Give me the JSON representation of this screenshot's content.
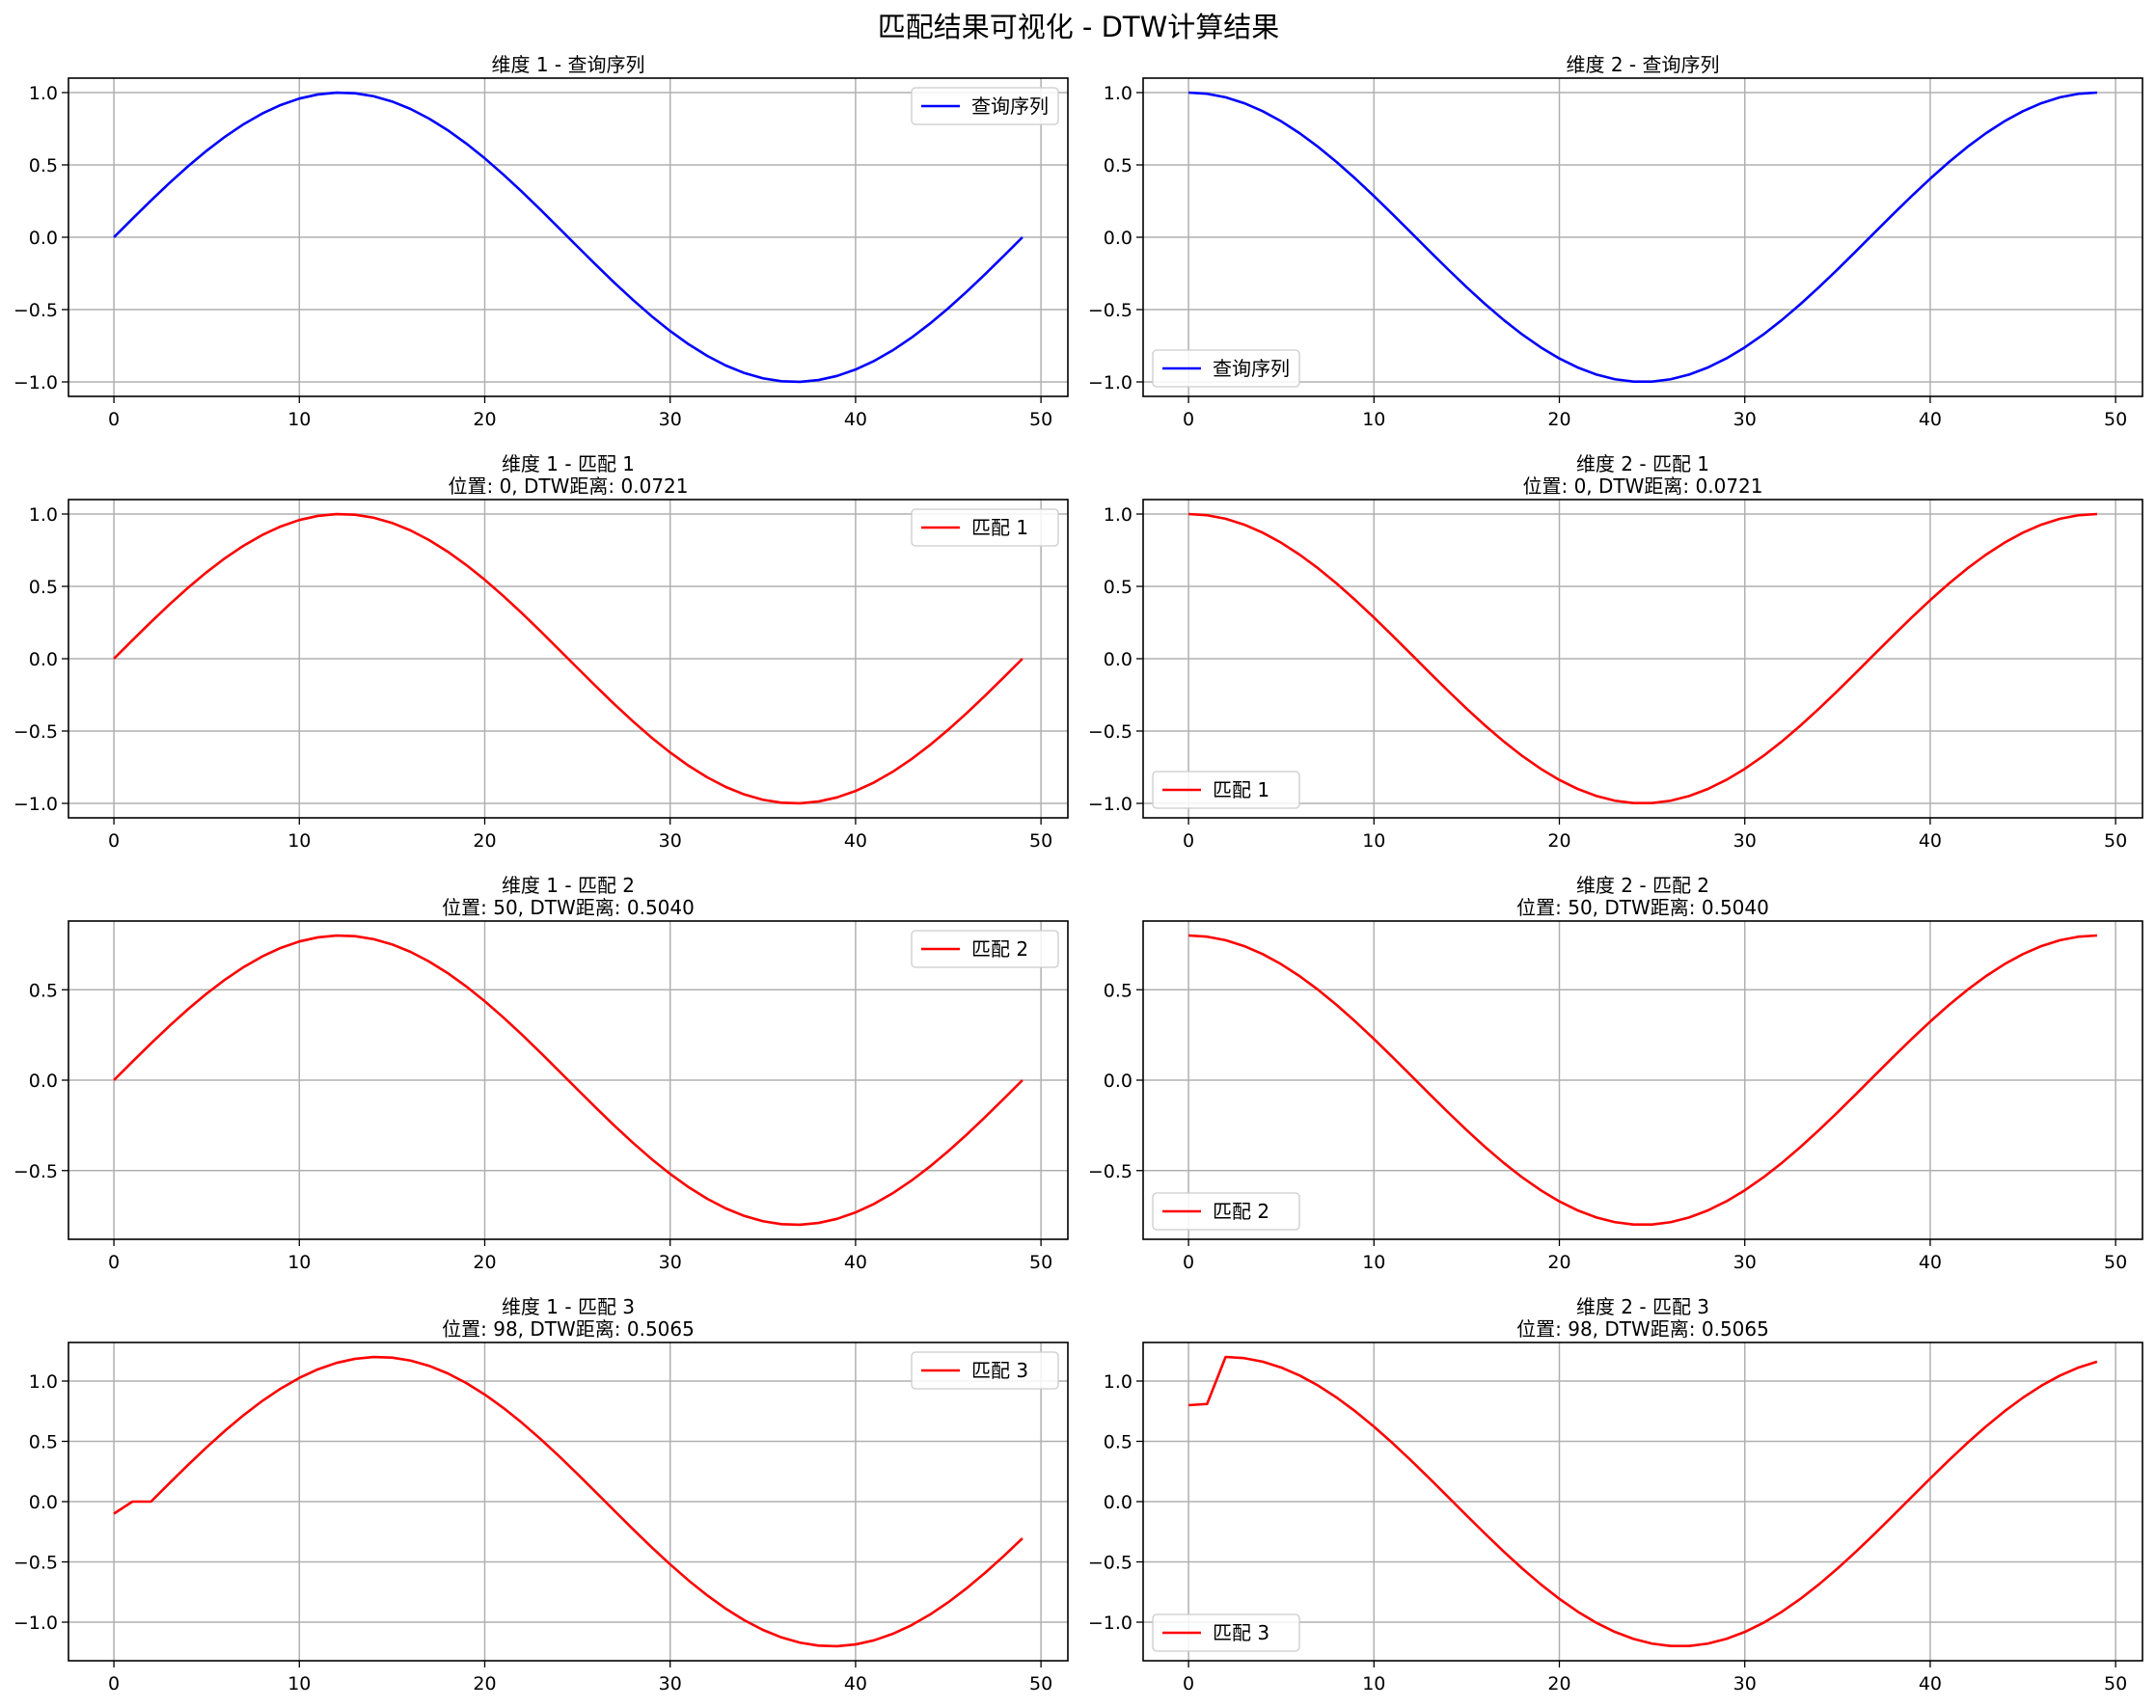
{
  "figure": {
    "title": "匹配结果可视化 - DTW计算结果",
    "colors": {
      "query": "#0000ff",
      "match": "#ff0000",
      "grid": "#b0b0b0",
      "axes": "#000000"
    }
  },
  "chart_data": [
    {
      "type": "line",
      "title": "维度 1 - 查询序列",
      "subtitle": "",
      "xlim": [
        -2.45,
        51.45
      ],
      "ylim": [
        -1.1,
        1.1
      ],
      "xticks": [
        0,
        10,
        20,
        30,
        40,
        50
      ],
      "yticks": [
        -1.0,
        -0.5,
        0.0,
        0.5,
        1.0
      ],
      "ytick_labels": [
        "−1.0",
        "−0.5",
        "0.0",
        "0.5",
        "1.0"
      ],
      "grid": true,
      "legend_position": "upper right",
      "series": [
        {
          "name": "查询序列",
          "color": "#0000ff",
          "x_range": [
            0,
            49
          ],
          "function": "sin",
          "amplitude": 1.0
        }
      ]
    },
    {
      "type": "line",
      "title": "维度 2 - 查询序列",
      "subtitle": "",
      "xlim": [
        -2.45,
        51.45
      ],
      "ylim": [
        -1.1,
        1.1
      ],
      "xticks": [
        0,
        10,
        20,
        30,
        40,
        50
      ],
      "yticks": [
        -1.0,
        -0.5,
        0.0,
        0.5,
        1.0
      ],
      "ytick_labels": [
        "−1.0",
        "−0.5",
        "0.0",
        "0.5",
        "1.0"
      ],
      "grid": true,
      "legend_position": "lower left",
      "series": [
        {
          "name": "查询序列",
          "color": "#0000ff",
          "x_range": [
            0,
            49
          ],
          "function": "cos",
          "amplitude": 1.0
        }
      ]
    },
    {
      "type": "line",
      "title": "维度 1 - 匹配 1",
      "subtitle": "位置: 0, DTW距离: 0.0721",
      "xlim": [
        -2.45,
        51.45
      ],
      "ylim": [
        -1.1,
        1.1
      ],
      "xticks": [
        0,
        10,
        20,
        30,
        40,
        50
      ],
      "yticks": [
        -1.0,
        -0.5,
        0.0,
        0.5,
        1.0
      ],
      "ytick_labels": [
        "−1.0",
        "−0.5",
        "0.0",
        "0.5",
        "1.0"
      ],
      "grid": true,
      "legend_position": "upper right",
      "series": [
        {
          "name": "匹配 1",
          "color": "#ff0000",
          "x_range": [
            0,
            49
          ],
          "function": "sin",
          "amplitude": 1.0
        }
      ]
    },
    {
      "type": "line",
      "title": "维度 2 - 匹配 1",
      "subtitle": "位置: 0, DTW距离: 0.0721",
      "xlim": [
        -2.45,
        51.45
      ],
      "ylim": [
        -1.1,
        1.1
      ],
      "xticks": [
        0,
        10,
        20,
        30,
        40,
        50
      ],
      "yticks": [
        -1.0,
        -0.5,
        0.0,
        0.5,
        1.0
      ],
      "ytick_labels": [
        "−1.0",
        "−0.5",
        "0.0",
        "0.5",
        "1.0"
      ],
      "grid": true,
      "legend_position": "lower left",
      "series": [
        {
          "name": "匹配 1",
          "color": "#ff0000",
          "x_range": [
            0,
            49
          ],
          "function": "cos",
          "amplitude": 1.0
        }
      ]
    },
    {
      "type": "line",
      "title": "维度 1 - 匹配 2",
      "subtitle": "位置: 50, DTW距离: 0.5040",
      "xlim": [
        -2.45,
        51.45
      ],
      "ylim": [
        -0.88,
        0.88
      ],
      "xticks": [
        0,
        10,
        20,
        30,
        40,
        50
      ],
      "yticks": [
        -0.5,
        0.0,
        0.5
      ],
      "ytick_labels": [
        "−0.5",
        "0.0",
        "0.5"
      ],
      "grid": true,
      "legend_position": "upper right",
      "series": [
        {
          "name": "匹配 2",
          "color": "#ff0000",
          "x_range": [
            0,
            49
          ],
          "function": "sin",
          "amplitude": 0.8
        }
      ]
    },
    {
      "type": "line",
      "title": "维度 2 - 匹配 2",
      "subtitle": "位置: 50, DTW距离: 0.5040",
      "xlim": [
        -2.45,
        51.45
      ],
      "ylim": [
        -0.88,
        0.88
      ],
      "xticks": [
        0,
        10,
        20,
        30,
        40,
        50
      ],
      "yticks": [
        -0.5,
        0.0,
        0.5
      ],
      "ytick_labels": [
        "−0.5",
        "0.0",
        "0.5"
      ],
      "grid": true,
      "legend_position": "lower left",
      "series": [
        {
          "name": "匹配 2",
          "color": "#ff0000",
          "x_range": [
            0,
            49
          ],
          "function": "cos",
          "amplitude": 0.8
        }
      ]
    },
    {
      "type": "line",
      "title": "维度 1 - 匹配 3",
      "subtitle": "位置: 98, DTW距离: 0.5065",
      "xlim": [
        -2.45,
        51.45
      ],
      "ylim": [
        -1.32,
        1.32
      ],
      "xticks": [
        0,
        10,
        20,
        30,
        40,
        50
      ],
      "yticks": [
        -1.0,
        -0.5,
        0.0,
        0.5,
        1.0
      ],
      "ytick_labels": [
        "−1.0",
        "−0.5",
        "0.0",
        "0.5",
        "1.0"
      ],
      "grid": true,
      "legend_position": "upper right",
      "series": [
        {
          "name": "匹配 3",
          "color": "#ff0000",
          "x_range": [
            0,
            49
          ],
          "function": "sin",
          "amplitude": 1.2,
          "shift": 2,
          "head": [
            -0.1,
            0.0
          ]
        }
      ]
    },
    {
      "type": "line",
      "title": "维度 2 - 匹配 3",
      "subtitle": "位置: 98, DTW距离: 0.5065",
      "xlim": [
        -2.45,
        51.45
      ],
      "ylim": [
        -1.32,
        1.32
      ],
      "xticks": [
        0,
        10,
        20,
        30,
        40,
        50
      ],
      "yticks": [
        -1.0,
        -0.5,
        0.0,
        0.5,
        1.0
      ],
      "ytick_labels": [
        "−1.0",
        "−0.5",
        "0.0",
        "0.5",
        "1.0"
      ],
      "grid": true,
      "legend_position": "lower left",
      "series": [
        {
          "name": "匹配 3",
          "color": "#ff0000",
          "x_range": [
            0,
            49
          ],
          "function": "cos",
          "amplitude": 1.2,
          "shift": 2,
          "head": [
            0.8,
            0.81
          ]
        }
      ]
    }
  ]
}
